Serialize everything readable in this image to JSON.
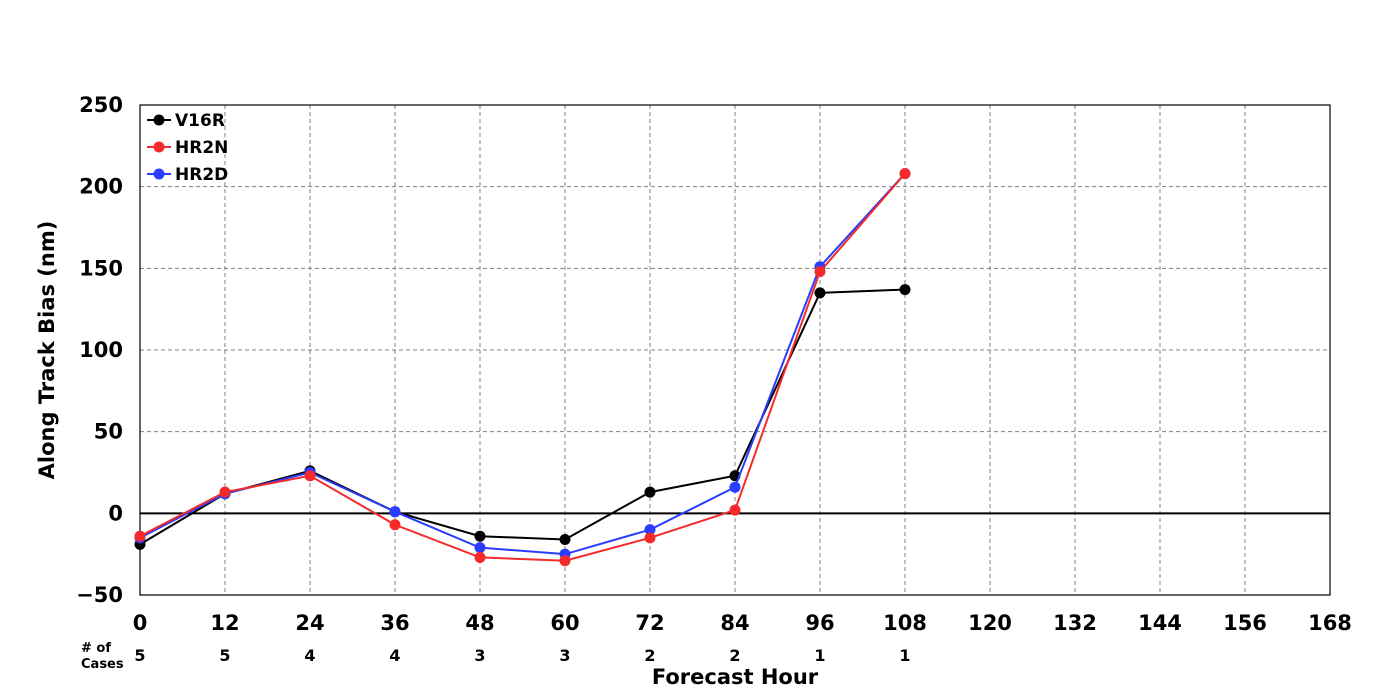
{
  "chart_data": {
    "type": "line",
    "xlabel": "Forecast Hour",
    "ylabel": "Along Track Bias (nm)",
    "xlim": [
      0,
      168
    ],
    "ylim": [
      -50,
      250
    ],
    "x_ticks": [
      "0",
      "12",
      "24",
      "36",
      "48",
      "60",
      "72",
      "84",
      "96",
      "108",
      "120",
      "132",
      "144",
      "156",
      "168"
    ],
    "y_ticks": [
      "−50",
      "0",
      "50",
      "100",
      "150",
      "200",
      "250"
    ],
    "grid": true,
    "legend_position": "top-left",
    "cases_label": [
      "# of",
      "Cases"
    ],
    "cases": [
      {
        "x": 0,
        "label": "5"
      },
      {
        "x": 12,
        "label": "5"
      },
      {
        "x": 24,
        "label": "4"
      },
      {
        "x": 36,
        "label": "4"
      },
      {
        "x": 48,
        "label": "3"
      },
      {
        "x": 60,
        "label": "3"
      },
      {
        "x": 72,
        "label": "2"
      },
      {
        "x": 84,
        "label": "2"
      },
      {
        "x": 96,
        "label": "1"
      },
      {
        "x": 108,
        "label": "1"
      }
    ],
    "x": [
      0,
      12,
      24,
      36,
      48,
      60,
      72,
      84,
      96,
      108
    ],
    "series": [
      {
        "name": "V16R",
        "color": "#000000",
        "values": [
          -19,
          12,
          26,
          1,
          -14,
          -16,
          13,
          23,
          135,
          137
        ]
      },
      {
        "name": "HR2N",
        "color": "#f52a2a",
        "values": [
          -14,
          13,
          23,
          -7,
          -27,
          -29,
          -15,
          2,
          148,
          208
        ]
      },
      {
        "name": "HR2D",
        "color": "#2a3cff",
        "values": [
          -15,
          12,
          25,
          1,
          -21,
          -25,
          -10,
          16,
          151,
          208
        ]
      }
    ]
  }
}
